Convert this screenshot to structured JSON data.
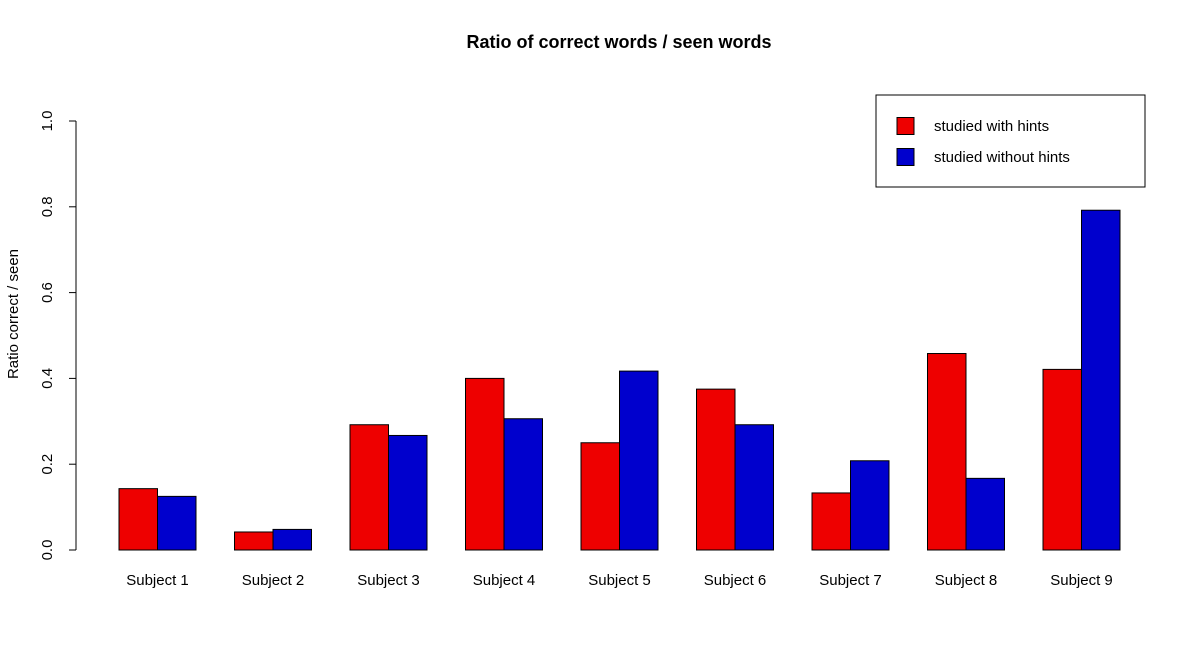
{
  "chart_data": {
    "type": "bar",
    "title": "Ratio of correct words / seen words",
    "xlabel": "",
    "ylabel": "Ratio correct / seen",
    "ylim": [
      0,
      1
    ],
    "yticks": [
      "0.0",
      "0.2",
      "0.4",
      "0.6",
      "0.8",
      "1.0"
    ],
    "categories": [
      "Subject 1",
      "Subject 2",
      "Subject 3",
      "Subject 4",
      "Subject 5",
      "Subject 6",
      "Subject 7",
      "Subject 8",
      "Subject 9"
    ],
    "series": [
      {
        "name": "studied with hints",
        "color": "#ee0000",
        "values": [
          0.143,
          0.042,
          0.292,
          0.4,
          0.25,
          0.375,
          0.133,
          0.458,
          0.421
        ]
      },
      {
        "name": "studied without hints",
        "color": "#0000cd",
        "values": [
          0.125,
          0.048,
          0.267,
          0.306,
          0.417,
          0.292,
          0.208,
          0.167,
          0.792
        ]
      }
    ],
    "grid": false,
    "legend_position": "top-right"
  }
}
